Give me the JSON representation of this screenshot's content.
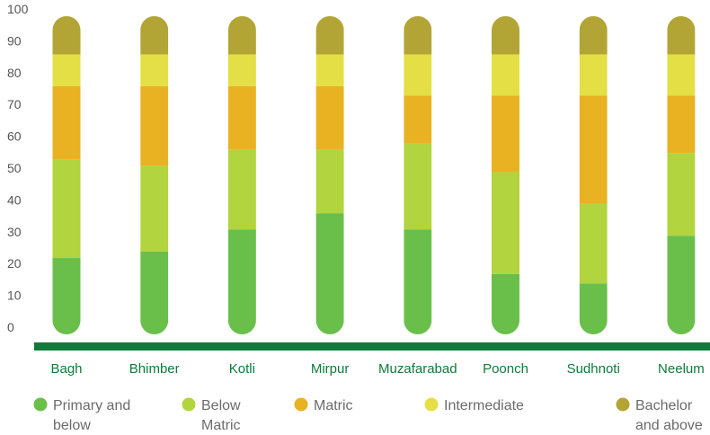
{
  "chart_data": {
    "type": "bar",
    "stacked": true,
    "ylim": [
      0,
      100
    ],
    "yticks": [
      0,
      10,
      20,
      30,
      40,
      50,
      60,
      70,
      80,
      90,
      100
    ],
    "grid": false,
    "legend_position": "bottom",
    "categories": [
      "Bagh",
      "Bhimber",
      "Kotli",
      "Mirpur",
      "Muzafarabad",
      "Poonch",
      "Sudhnoti",
      "Neelum"
    ],
    "series": [
      {
        "name": "Primary and below",
        "color": "#6abf4b",
        "values": [
          24,
          26,
          33,
          38,
          33,
          19,
          16,
          31
        ]
      },
      {
        "name": "Below Matric",
        "color": "#b2d43f",
        "values": [
          31,
          27,
          25,
          20,
          27,
          32,
          25,
          26
        ]
      },
      {
        "name": "Matric",
        "color": "#e8b223",
        "values": [
          23,
          25,
          20,
          20,
          15,
          24,
          34,
          18
        ]
      },
      {
        "name": "Intermediate",
        "color": "#e3df45",
        "values": [
          10,
          10,
          10,
          10,
          13,
          13,
          13,
          13
        ]
      },
      {
        "name": "Bachelor and above",
        "color": "#b3a535",
        "values": [
          12,
          12,
          12,
          12,
          12,
          12,
          12,
          12
        ]
      }
    ],
    "axis_color": "#0f7a3c"
  },
  "legend": [
    {
      "line1": "Primary and",
      "line2": "below"
    },
    {
      "line1": "Below",
      "line2": "Matric"
    },
    {
      "line1": "Matric",
      "line2": ""
    },
    {
      "line1": "Intermediate",
      "line2": ""
    },
    {
      "line1": "Bachelor",
      "line2": "and above"
    }
  ]
}
